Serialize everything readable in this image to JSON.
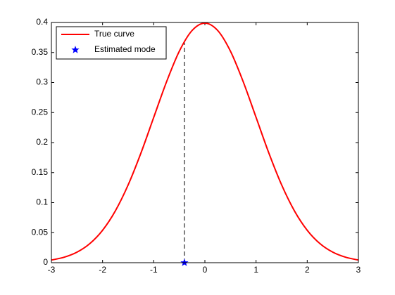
{
  "chart_data": {
    "type": "line",
    "xlim": [
      -3,
      3
    ],
    "xticks": [
      -3,
      -2,
      -1,
      0,
      1,
      2,
      3
    ],
    "ylim": [
      0,
      0.4
    ],
    "yticks": [
      0,
      0.05,
      0.1,
      0.15,
      0.2,
      0.25,
      0.3,
      0.35,
      0.4
    ],
    "grid": false,
    "legend": "top-left",
    "series": [
      {
        "name": "True curve",
        "type": "line",
        "color": "#ff0000",
        "x": [
          -3,
          -2.75,
          -2.5,
          -2.25,
          -2,
          -1.75,
          -1.5,
          -1.25,
          -1,
          -0.75,
          -0.5,
          -0.25,
          0,
          0.25,
          0.5,
          0.75,
          1,
          1.25,
          1.5,
          1.75,
          2,
          2.25,
          2.5,
          2.75,
          3
        ],
        "values": [
          0.0044,
          0.0091,
          0.0175,
          0.0317,
          0.054,
          0.0863,
          0.1295,
          0.1826,
          0.242,
          0.3011,
          0.3521,
          0.3867,
          0.3989,
          0.3867,
          0.3521,
          0.3011,
          0.242,
          0.1826,
          0.1295,
          0.0863,
          0.054,
          0.0317,
          0.0175,
          0.0091,
          0.0044
        ]
      },
      {
        "name": "Estimated mode",
        "type": "scatter",
        "color": "#0000ff",
        "x": [
          -0.4
        ],
        "values": [
          0
        ]
      }
    ],
    "guide_line": {
      "x": [
        -0.4,
        -0.4
      ],
      "y": [
        0,
        0.368
      ],
      "color": "#000000"
    }
  }
}
